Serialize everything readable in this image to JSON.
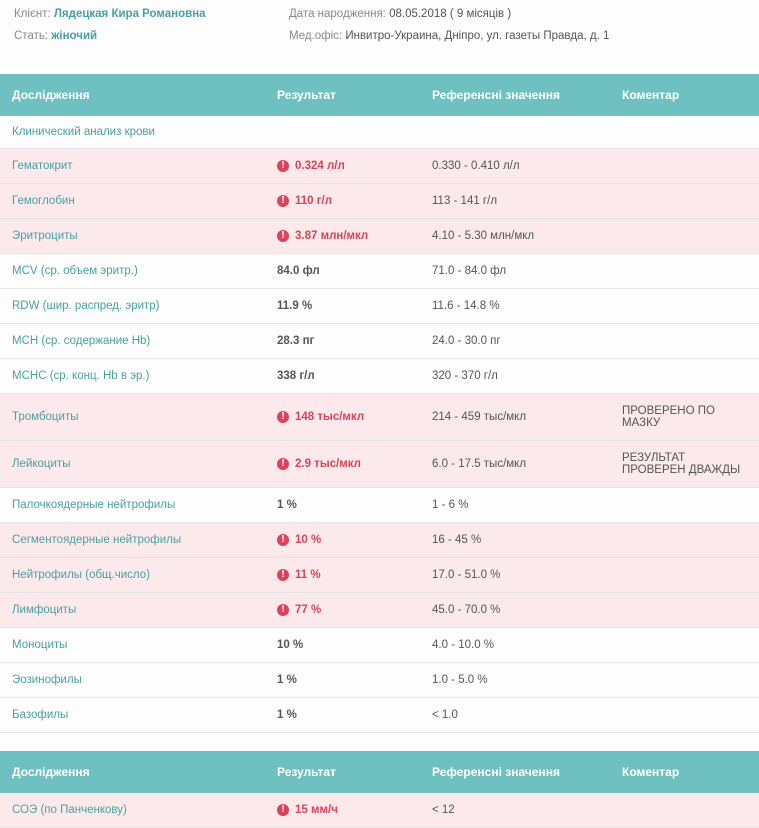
{
  "colors": {
    "header_bg": "#6fc0c0",
    "header_text": "#ffffff",
    "teal_text": "#4aa0a0",
    "alert_bg": "#fbe9eb",
    "alert_text": "#d9435b",
    "body_text": "#555555",
    "label_text": "#888888",
    "row_border": "#e5e5e5"
  },
  "patient": {
    "client_label": "Клієнт:",
    "client_value": "Лядецкая Кира Романовна",
    "dob_label": "Дата народження:",
    "dob_value": "08.05.2018 ( 9 місяців )",
    "sex_label": "Стать:",
    "sex_value": "жіночий",
    "office_label": "Мед.офіс:",
    "office_value": "Инвитро-Украина, Дніпро, ул. газеты Правда, д. 1"
  },
  "columns": {
    "study": "Дослідження",
    "result": "Результат",
    "reference": "Референсні значення",
    "comment": "Коментар"
  },
  "tables": [
    {
      "group": "Клинический анализ крови",
      "rows": [
        {
          "name": "Гематокрит",
          "result": "0.324 л/л",
          "ref": "0.330 - 0.410 л/л",
          "comment": "",
          "alert": true
        },
        {
          "name": "Гемоглобин",
          "result": "110 г/л",
          "ref": "113 - 141 г/л",
          "comment": "",
          "alert": true
        },
        {
          "name": "Эритроциты",
          "result": "3.87 млн/мкл",
          "ref": "4.10 - 5.30 млн/мкл",
          "comment": "",
          "alert": true
        },
        {
          "name": "MCV (ср. объем эритр.)",
          "result": "84.0 фл",
          "ref": "71.0 - 84.0 фл",
          "comment": "",
          "alert": false
        },
        {
          "name": "RDW (шир. распред. эритр)",
          "result": "11.9 %",
          "ref": "11.6 - 14.8 %",
          "comment": "",
          "alert": false
        },
        {
          "name": "MCH (ср. содержание Hb)",
          "result": "28.3 пг",
          "ref": "24.0 - 30.0 пг",
          "comment": "",
          "alert": false
        },
        {
          "name": "MCHC (ср. конц. Hb в эр.)",
          "result": "338 г/л",
          "ref": "320 - 370 г/л",
          "comment": "",
          "alert": false
        },
        {
          "name": "Тромбоциты",
          "result": "148 тыс/мкл",
          "ref": "214 - 459 тыс/мкл",
          "comment": "ПРОВЕРЕНО ПО МАЗКУ",
          "alert": true
        },
        {
          "name": "Лейкоциты",
          "result": "2.9 тыс/мкл",
          "ref": "6.0 - 17.5 тыс/мкл",
          "comment": "РЕЗУЛЬТАТ ПРОВЕРЕН ДВАЖДЫ",
          "alert": true
        },
        {
          "name": "Палочкоядерные нейтрофилы",
          "result": "1 %",
          "ref": "1 - 6 %",
          "comment": "",
          "alert": false
        },
        {
          "name": "Сегментоядерные нейтрофилы",
          "result": "10 %",
          "ref": "16 - 45 %",
          "comment": "",
          "alert": true
        },
        {
          "name": "Нейтрофилы (общ.число)",
          "result": "11 %",
          "ref": "17.0 - 51.0 %",
          "comment": "",
          "alert": true
        },
        {
          "name": "Лимфоциты",
          "result": "77 %",
          "ref": "45.0 - 70.0 %",
          "comment": "",
          "alert": true
        },
        {
          "name": "Моноциты",
          "result": "10 %",
          "ref": "4.0 - 10.0 %",
          "comment": "",
          "alert": false
        },
        {
          "name": "Эозинофилы",
          "result": "1 %",
          "ref": "1.0 - 5.0 %",
          "comment": "",
          "alert": false
        },
        {
          "name": "Базофилы",
          "result": "1 %",
          "ref": "< 1.0",
          "comment": "",
          "alert": false
        }
      ]
    },
    {
      "group": null,
      "rows": [
        {
          "name": "СОЭ (по Панченкову)",
          "result": "15 мм/ч",
          "ref": "< 12",
          "comment": "",
          "alert": true
        }
      ]
    }
  ]
}
